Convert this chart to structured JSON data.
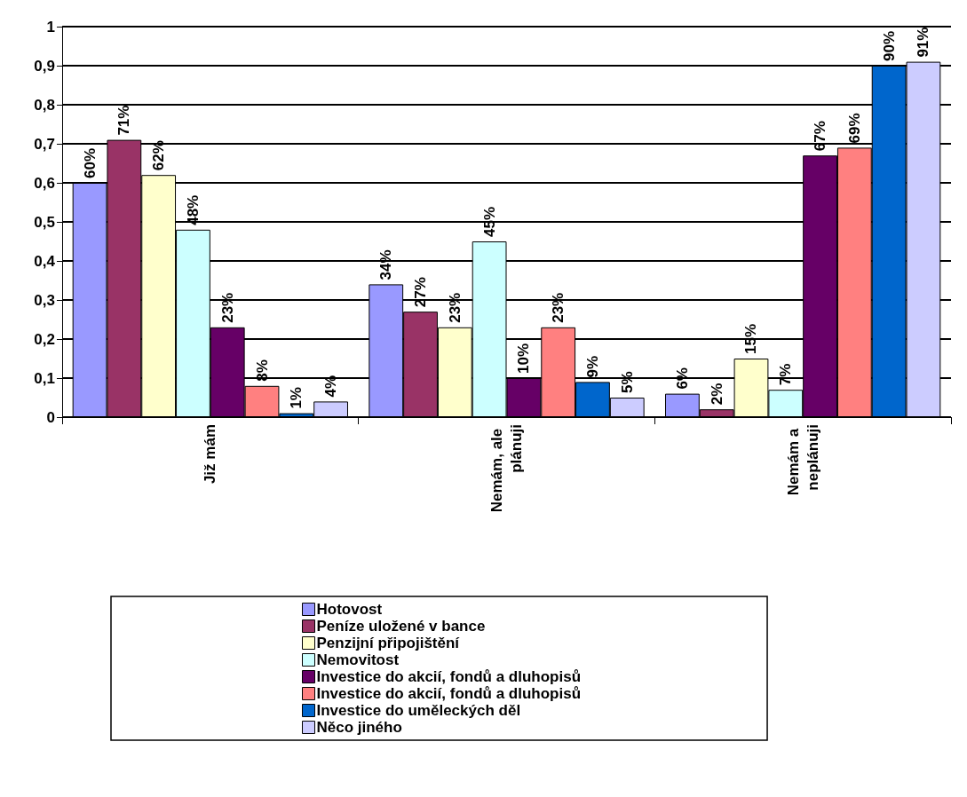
{
  "chart_data": {
    "type": "bar",
    "categories": [
      "Již mám",
      "Nemám, ale plánuji",
      "Nemám a neplánuji"
    ],
    "series": [
      {
        "name": "Hotovost",
        "color": "#9999ff",
        "values": [
          0.6,
          0.34,
          0.06
        ],
        "value_labels": [
          "60%",
          "34%",
          "6%"
        ]
      },
      {
        "name": "Peníze uložené v bance",
        "color": "#993366",
        "values": [
          0.71,
          0.27,
          0.02
        ],
        "value_labels": [
          "71%",
          "27%",
          "2%"
        ]
      },
      {
        "name": "Penzijní připojištění",
        "color": "#ffffcc",
        "values": [
          0.62,
          0.23,
          0.15
        ],
        "value_labels": [
          "62%",
          "23%",
          "15%"
        ]
      },
      {
        "name": "Nemovitost",
        "color": "#ccffff",
        "values": [
          0.48,
          0.45,
          0.07
        ],
        "value_labels": [
          "48%",
          "45%",
          "7%"
        ]
      },
      {
        "name": "Investice do akcií, fondů a dluhopisů",
        "color": "#660066",
        "values": [
          0.23,
          0.1,
          0.67
        ],
        "value_labels": [
          "23%",
          "10%",
          "67%"
        ]
      },
      {
        "name": "Investice do akcií, fondů a dluhopisů",
        "color": "#ff8080",
        "values": [
          0.08,
          0.23,
          0.69
        ],
        "value_labels": [
          "8%",
          "23%",
          "69%"
        ]
      },
      {
        "name": "Investice do uměleckých děl",
        "color": "#0066cc",
        "values": [
          0.01,
          0.09,
          0.9
        ],
        "value_labels": [
          "1%",
          "9%",
          "90%"
        ]
      },
      {
        "name": "Něco jiného",
        "color": "#ccccff",
        "values": [
          0.04,
          0.05,
          0.91
        ],
        "value_labels": [
          "4%",
          "5%",
          "91%"
        ]
      }
    ],
    "ylim": [
      0,
      1
    ],
    "yticks": [
      0,
      {
        "value": 0.1,
        "label": "0,1"
      },
      {
        "value": 0.2,
        "label": "0,2"
      },
      {
        "value": 0.3,
        "label": "0,3"
      },
      {
        "value": 0.4,
        "label": "0,4"
      },
      {
        "value": 0.5,
        "label": "0,5"
      },
      {
        "value": 0.6,
        "label": "0,6"
      },
      {
        "value": 0.7,
        "label": "0,7"
      },
      {
        "value": 0.8,
        "label": "0,8"
      },
      {
        "value": 0.9,
        "label": "0,9"
      },
      1
    ],
    "grid": "y",
    "legend": "bottom"
  }
}
